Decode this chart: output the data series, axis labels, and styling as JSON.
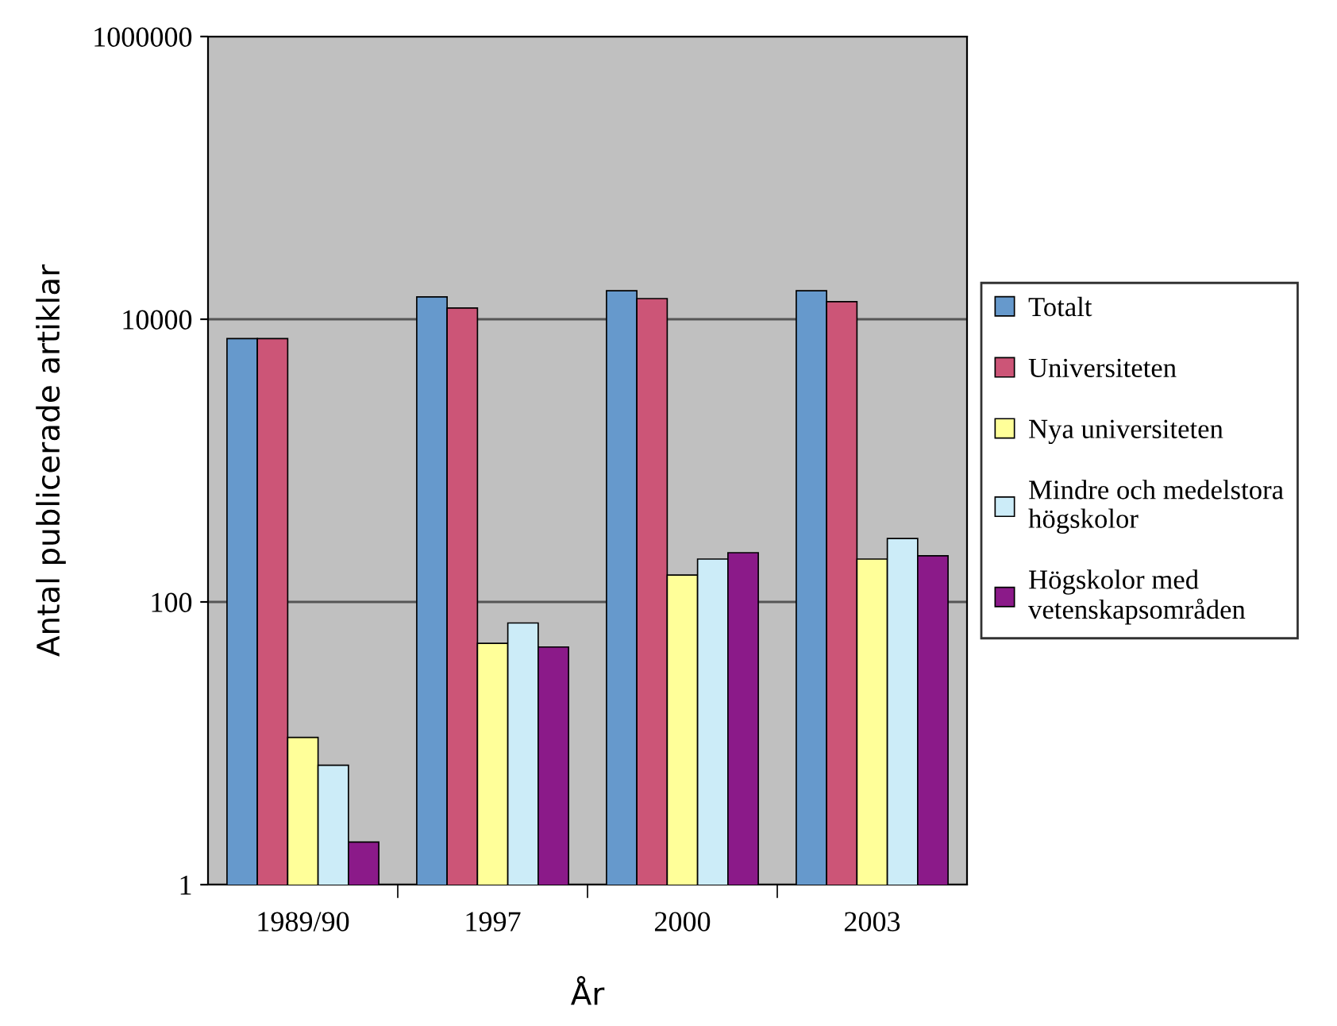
{
  "chart_data": {
    "type": "bar",
    "xlabel": "År",
    "ylabel": "Antal publicerade artiklar",
    "categories": [
      "1989/90",
      "1997",
      "2000",
      "2003"
    ],
    "series": [
      {
        "name": "Totalt",
        "color": "#6699cc",
        "values": [
          7300,
          14400,
          15900,
          15900
        ]
      },
      {
        "name": "Universiteten",
        "color": "#cc5577",
        "values": [
          7300,
          12000,
          14000,
          13300
        ]
      },
      {
        "name": "Nya universiteten",
        "color": "#ffff99",
        "values": [
          11,
          51,
          155,
          201
        ]
      },
      {
        "name": "Mindre och medelstora\nhögskolor",
        "color": "#ccecf8",
        "values": [
          7,
          71,
          201,
          281
        ]
      },
      {
        "name": "Högskolor med\nvetenskapsområden",
        "color": "#8b1a89",
        "values": [
          2,
          48,
          223,
          212
        ]
      }
    ],
    "log": "y",
    "ylim": [
      1,
      1000000
    ],
    "yticks": [
      1,
      100,
      10000,
      1000000
    ],
    "grid": "y",
    "legend": "right"
  }
}
